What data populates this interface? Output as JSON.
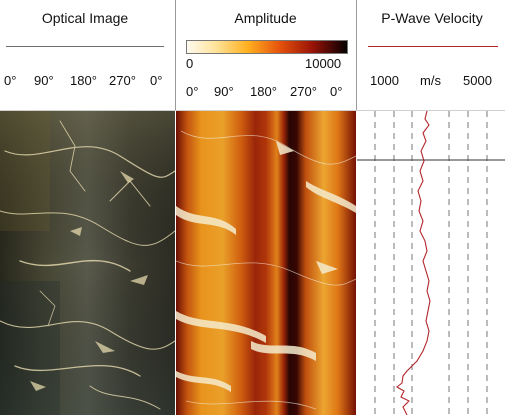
{
  "optical_track": {
    "title": "Optical Image",
    "ticks": [
      "0°",
      "90°",
      "180°",
      "270°",
      "0°"
    ]
  },
  "amplitude_track": {
    "title": "Amplitude",
    "scale_min": "0",
    "scale_max": "10000",
    "ticks": [
      "0°",
      "90°",
      "180°",
      "270°",
      "0°"
    ]
  },
  "velocity_track": {
    "title": "P-Wave Velocity",
    "scale_min": "1000",
    "unit": "m/s",
    "scale_max": "5000",
    "curve_color": "#b3262b"
  },
  "colors": {
    "header_line": "#6e6e6e",
    "velocity_line": "#b3262b"
  }
}
